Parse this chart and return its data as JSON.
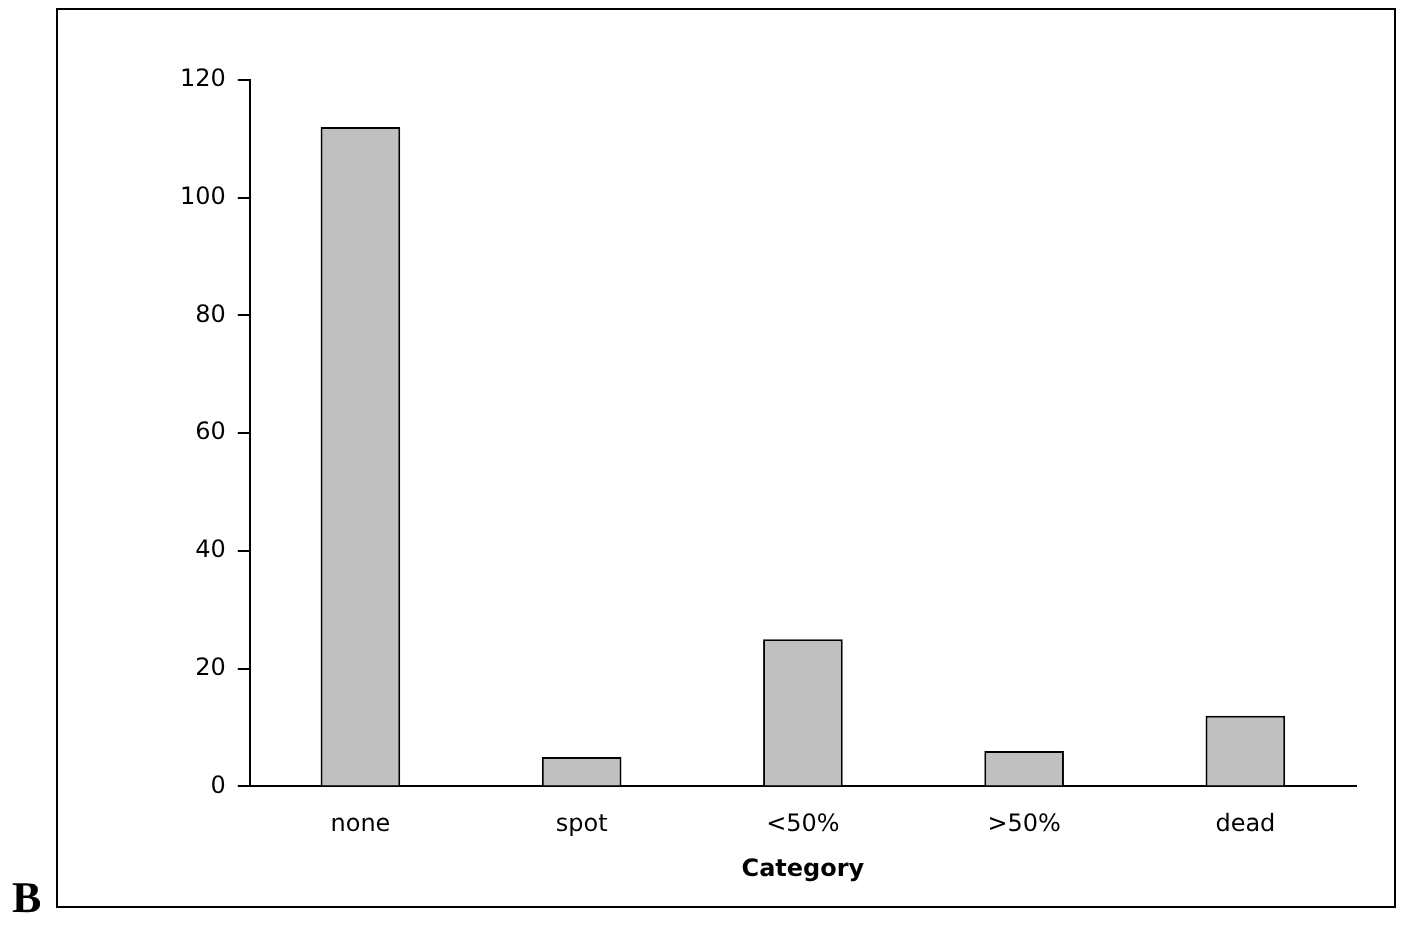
{
  "chart_data": {
    "type": "bar",
    "xlabel": "Category",
    "categories": [
      "none",
      "spot",
      "<50%",
      ">50%",
      "dead"
    ],
    "values": [
      112,
      5,
      25,
      6,
      12
    ],
    "color": "#c0c0c0",
    "ylim": [
      0,
      120
    ],
    "yticks": [
      0,
      20,
      40,
      60,
      80,
      100,
      120
    ],
    "grid": false,
    "legend": false,
    "annotations": [
      "B"
    ]
  }
}
